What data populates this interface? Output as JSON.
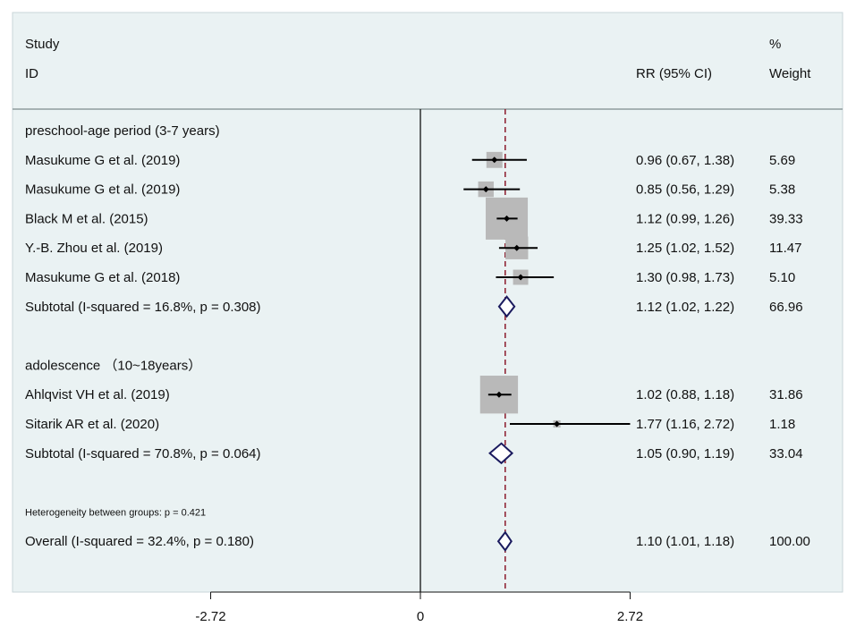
{
  "chart_data": {
    "type": "forest",
    "headers": {
      "study_line1": "Study",
      "study_line2": "ID",
      "estimate": "RR (95% CI)",
      "weight_line1": "%",
      "weight_line2": "Weight"
    },
    "x_axis": {
      "ticks": [
        -2.72,
        0,
        2.72
      ],
      "tick_labels": [
        "-2.72",
        "0",
        "2.72"
      ],
      "null_line": 0,
      "overall_line": 1.1
    },
    "rows": [
      {
        "kind": "group",
        "label": "preschool-age period (3-7 years)"
      },
      {
        "kind": "study",
        "label": "Masukume G et al. (2019)",
        "rr": 0.96,
        "lo": 0.67,
        "hi": 1.38,
        "ci_text": "0.96 (0.67, 1.38)",
        "weight": 5.69,
        "weight_text": "5.69"
      },
      {
        "kind": "study",
        "label": "Masukume G et al. (2019)",
        "rr": 0.85,
        "lo": 0.56,
        "hi": 1.29,
        "ci_text": "0.85 (0.56, 1.29)",
        "weight": 5.38,
        "weight_text": "5.38"
      },
      {
        "kind": "study",
        "label": "Black M et al. (2015)",
        "rr": 1.12,
        "lo": 0.99,
        "hi": 1.26,
        "ci_text": "1.12 (0.99, 1.26)",
        "weight": 39.33,
        "weight_text": "39.33"
      },
      {
        "kind": "study",
        "label": "Y.-B. Zhou et al. (2019)",
        "rr": 1.25,
        "lo": 1.02,
        "hi": 1.52,
        "ci_text": "1.25 (1.02, 1.52)",
        "weight": 11.47,
        "weight_text": "11.47"
      },
      {
        "kind": "study",
        "label": "Masukume G et al. (2018)",
        "rr": 1.3,
        "lo": 0.98,
        "hi": 1.73,
        "ci_text": "1.30 (0.98, 1.73)",
        "weight": 5.1,
        "weight_text": "5.10"
      },
      {
        "kind": "subtotal",
        "label": "Subtotal  (I-squared = 16.8%, p = 0.308)",
        "rr": 1.12,
        "lo": 1.02,
        "hi": 1.22,
        "ci_text": "1.12 (1.02, 1.22)",
        "weight": 66.96,
        "weight_text": "66.96"
      },
      {
        "kind": "spacer"
      },
      {
        "kind": "group",
        "label": "adolescence （10~18years）"
      },
      {
        "kind": "study",
        "label": "Ahlqvist VH et al. (2019)",
        "rr": 1.02,
        "lo": 0.88,
        "hi": 1.18,
        "ci_text": "1.02 (0.88, 1.18)",
        "weight": 31.86,
        "weight_text": "31.86"
      },
      {
        "kind": "study",
        "label": "Sitarik AR et al. (2020)",
        "rr": 1.77,
        "lo": 1.16,
        "hi": 2.72,
        "ci_text": "1.77 (1.16, 2.72)",
        "weight": 1.18,
        "weight_text": "1.18"
      },
      {
        "kind": "subtotal",
        "label": "Subtotal  (I-squared = 70.8%, p = 0.064)",
        "rr": 1.05,
        "lo": 0.9,
        "hi": 1.19,
        "ci_text": "1.05 (0.90, 1.19)",
        "weight": 33.04,
        "weight_text": "33.04"
      },
      {
        "kind": "spacer"
      },
      {
        "kind": "note",
        "label": "Heterogeneity between groups: p = 0.421"
      },
      {
        "kind": "overall",
        "label": "Overall  (I-squared = 32.4%, p = 0.180)",
        "rr": 1.1,
        "lo": 1.01,
        "hi": 1.18,
        "ci_text": "1.10 (1.01, 1.18)",
        "weight": 100.0,
        "weight_text": "100.00"
      }
    ],
    "colors": {
      "background": "#ffffff",
      "frame_background": "#eaf2f3",
      "frame_border": "#c9d6d8",
      "weight_box": "#b9b9b9",
      "diamond": "#1a1a5e",
      "overall_line": "#8b1a2b",
      "text": "#111111"
    }
  }
}
